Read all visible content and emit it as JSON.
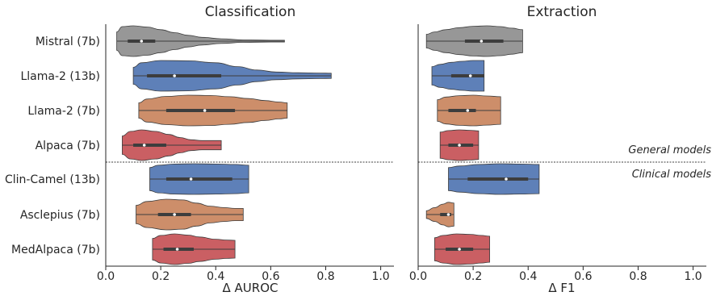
{
  "chart_data": [
    {
      "type": "violin",
      "title": "Classification",
      "xlabel": "Δ AUROC",
      "xlim": [
        0.0,
        1.05
      ],
      "xticks": [
        "0.0",
        "0.2",
        "0.4",
        "0.6",
        "0.8",
        "1.0"
      ],
      "categories": [
        "Mistral (7b)",
        "Llama-2 (13b)",
        "Llama-2 (7b)",
        "Alpaca (7b)",
        "Clin-Camel (13b)",
        "Asclepius (7b)",
        "MedAlpaca (7b)"
      ],
      "series": [
        {
          "category": "Mistral (7b)",
          "color": "#8c8c8c",
          "min": 0.04,
          "max": 0.65,
          "q1": 0.08,
          "median": 0.13,
          "q3": 0.18,
          "profile": [
            [
              0.04,
              0.6
            ],
            [
              0.06,
              0.95
            ],
            [
              0.1,
              1.0
            ],
            [
              0.15,
              0.92
            ],
            [
              0.2,
              0.75
            ],
            [
              0.25,
              0.55
            ],
            [
              0.3,
              0.38
            ],
            [
              0.35,
              0.25
            ],
            [
              0.42,
              0.15
            ],
            [
              0.5,
              0.08
            ],
            [
              0.6,
              0.06
            ],
            [
              0.65,
              0.06
            ]
          ]
        },
        {
          "category": "Llama-2 (13b)",
          "color": "#4c72b0",
          "min": 0.1,
          "max": 0.82,
          "q1": 0.15,
          "median": 0.25,
          "q3": 0.42,
          "profile": [
            [
              0.1,
              0.55
            ],
            [
              0.13,
              0.85
            ],
            [
              0.2,
              1.0
            ],
            [
              0.3,
              0.98
            ],
            [
              0.4,
              0.85
            ],
            [
              0.48,
              0.6
            ],
            [
              0.55,
              0.38
            ],
            [
              0.62,
              0.25
            ],
            [
              0.7,
              0.2
            ],
            [
              0.78,
              0.18
            ],
            [
              0.82,
              0.17
            ]
          ]
        },
        {
          "category": "Llama-2 (7b)",
          "color": "#c8825a",
          "min": 0.12,
          "max": 0.66,
          "q1": 0.22,
          "median": 0.36,
          "q3": 0.47,
          "profile": [
            [
              0.12,
              0.5
            ],
            [
              0.15,
              0.75
            ],
            [
              0.22,
              0.92
            ],
            [
              0.3,
              1.0
            ],
            [
              0.38,
              0.98
            ],
            [
              0.45,
              0.9
            ],
            [
              0.52,
              0.78
            ],
            [
              0.58,
              0.65
            ],
            [
              0.63,
              0.55
            ],
            [
              0.66,
              0.5
            ]
          ]
        },
        {
          "category": "Alpaca (7b)",
          "color": "#c44e52",
          "min": 0.06,
          "max": 0.42,
          "q1": 0.1,
          "median": 0.14,
          "q3": 0.22,
          "profile": [
            [
              0.06,
              0.6
            ],
            [
              0.09,
              0.9
            ],
            [
              0.13,
              1.0
            ],
            [
              0.18,
              0.9
            ],
            [
              0.23,
              0.7
            ],
            [
              0.27,
              0.5
            ],
            [
              0.31,
              0.35
            ],
            [
              0.35,
              0.3
            ],
            [
              0.39,
              0.3
            ],
            [
              0.42,
              0.3
            ]
          ]
        },
        {
          "category": "Clin-Camel (13b)",
          "color": "#4c72b0",
          "min": 0.16,
          "max": 0.52,
          "q1": 0.22,
          "median": 0.31,
          "q3": 0.46,
          "profile": [
            [
              0.16,
              0.75
            ],
            [
              0.19,
              0.9
            ],
            [
              0.25,
              0.98
            ],
            [
              0.32,
              1.0
            ],
            [
              0.4,
              0.98
            ],
            [
              0.47,
              0.95
            ],
            [
              0.52,
              0.9
            ]
          ]
        },
        {
          "category": "Asclepius (7b)",
          "color": "#c8825a",
          "min": 0.11,
          "max": 0.5,
          "q1": 0.19,
          "median": 0.25,
          "q3": 0.31,
          "profile": [
            [
              0.11,
              0.6
            ],
            [
              0.15,
              0.85
            ],
            [
              0.22,
              1.0
            ],
            [
              0.28,
              0.95
            ],
            [
              0.33,
              0.75
            ],
            [
              0.38,
              0.55
            ],
            [
              0.43,
              0.45
            ],
            [
              0.47,
              0.4
            ],
            [
              0.5,
              0.4
            ]
          ]
        },
        {
          "category": "MedAlpaca (7b)",
          "color": "#c44e52",
          "min": 0.17,
          "max": 0.47,
          "q1": 0.21,
          "median": 0.26,
          "q3": 0.32,
          "profile": [
            [
              0.17,
              0.7
            ],
            [
              0.2,
              0.9
            ],
            [
              0.25,
              1.0
            ],
            [
              0.3,
              0.92
            ],
            [
              0.34,
              0.8
            ],
            [
              0.4,
              0.65
            ],
            [
              0.44,
              0.6
            ],
            [
              0.47,
              0.58
            ]
          ]
        }
      ]
    },
    {
      "type": "violin",
      "title": "Extraction",
      "xlabel": "Δ F1",
      "xlim": [
        0.0,
        1.05
      ],
      "xticks": [
        "0.0",
        "0.2",
        "0.4",
        "0.6",
        "0.8",
        "1.0"
      ],
      "categories": [
        "Mistral (7b)",
        "Llama-2 (13b)",
        "Llama-2 (7b)",
        "Alpaca (7b)",
        "Clin-Camel (13b)",
        "Asclepius (7b)",
        "MedAlpaca (7b)"
      ],
      "annotations": [
        "General models",
        "Clinical models"
      ],
      "series": [
        {
          "category": "Mistral (7b)",
          "color": "#8c8c8c",
          "min": 0.03,
          "max": 0.38,
          "q1": 0.17,
          "median": 0.23,
          "q3": 0.31,
          "profile": [
            [
              0.03,
              0.45
            ],
            [
              0.06,
              0.6
            ],
            [
              0.1,
              0.75
            ],
            [
              0.15,
              0.88
            ],
            [
              0.2,
              0.97
            ],
            [
              0.25,
              1.0
            ],
            [
              0.3,
              0.95
            ],
            [
              0.34,
              0.85
            ],
            [
              0.38,
              0.75
            ]
          ]
        },
        {
          "category": "Llama-2 (13b)",
          "color": "#4c72b0",
          "min": 0.05,
          "max": 0.24,
          "q1": 0.12,
          "median": 0.19,
          "q3": 0.24,
          "profile": [
            [
              0.05,
              0.6
            ],
            [
              0.08,
              0.75
            ],
            [
              0.12,
              0.88
            ],
            [
              0.16,
              0.95
            ],
            [
              0.2,
              1.0
            ],
            [
              0.24,
              1.0
            ]
          ]
        },
        {
          "category": "Llama-2 (7b)",
          "color": "#c8825a",
          "min": 0.07,
          "max": 0.3,
          "q1": 0.11,
          "median": 0.18,
          "q3": 0.21,
          "profile": [
            [
              0.07,
              0.7
            ],
            [
              0.1,
              0.88
            ],
            [
              0.15,
              0.97
            ],
            [
              0.2,
              1.0
            ],
            [
              0.25,
              0.95
            ],
            [
              0.3,
              0.9
            ]
          ]
        },
        {
          "category": "Alpaca (7b)",
          "color": "#c44e52",
          "min": 0.08,
          "max": 0.22,
          "q1": 0.11,
          "median": 0.15,
          "q3": 0.2,
          "profile": [
            [
              0.08,
              0.85
            ],
            [
              0.11,
              0.95
            ],
            [
              0.15,
              1.0
            ],
            [
              0.19,
              0.97
            ],
            [
              0.22,
              0.93
            ]
          ]
        },
        {
          "category": "Clin-Camel (13b)",
          "color": "#4c72b0",
          "min": 0.11,
          "max": 0.44,
          "q1": 0.18,
          "median": 0.32,
          "q3": 0.4,
          "profile": [
            [
              0.11,
              0.75
            ],
            [
              0.15,
              0.85
            ],
            [
              0.22,
              0.95
            ],
            [
              0.3,
              1.0
            ],
            [
              0.37,
              0.98
            ],
            [
              0.44,
              0.95
            ]
          ]
        },
        {
          "category": "Asclepius (7b)",
          "color": "#c8825a",
          "min": 0.03,
          "max": 0.13,
          "q1": 0.08,
          "median": 0.11,
          "q3": 0.12,
          "profile": [
            [
              0.03,
              0.25
            ],
            [
              0.06,
              0.45
            ],
            [
              0.09,
              0.68
            ],
            [
              0.11,
              0.8
            ],
            [
              0.13,
              0.75
            ]
          ]
        },
        {
          "category": "MedAlpaca (7b)",
          "color": "#c44e52",
          "min": 0.06,
          "max": 0.26,
          "q1": 0.1,
          "median": 0.15,
          "q3": 0.2,
          "profile": [
            [
              0.06,
              0.75
            ],
            [
              0.09,
              0.9
            ],
            [
              0.14,
              1.0
            ],
            [
              0.19,
              0.97
            ],
            [
              0.23,
              0.9
            ],
            [
              0.26,
              0.85
            ]
          ]
        }
      ]
    }
  ]
}
